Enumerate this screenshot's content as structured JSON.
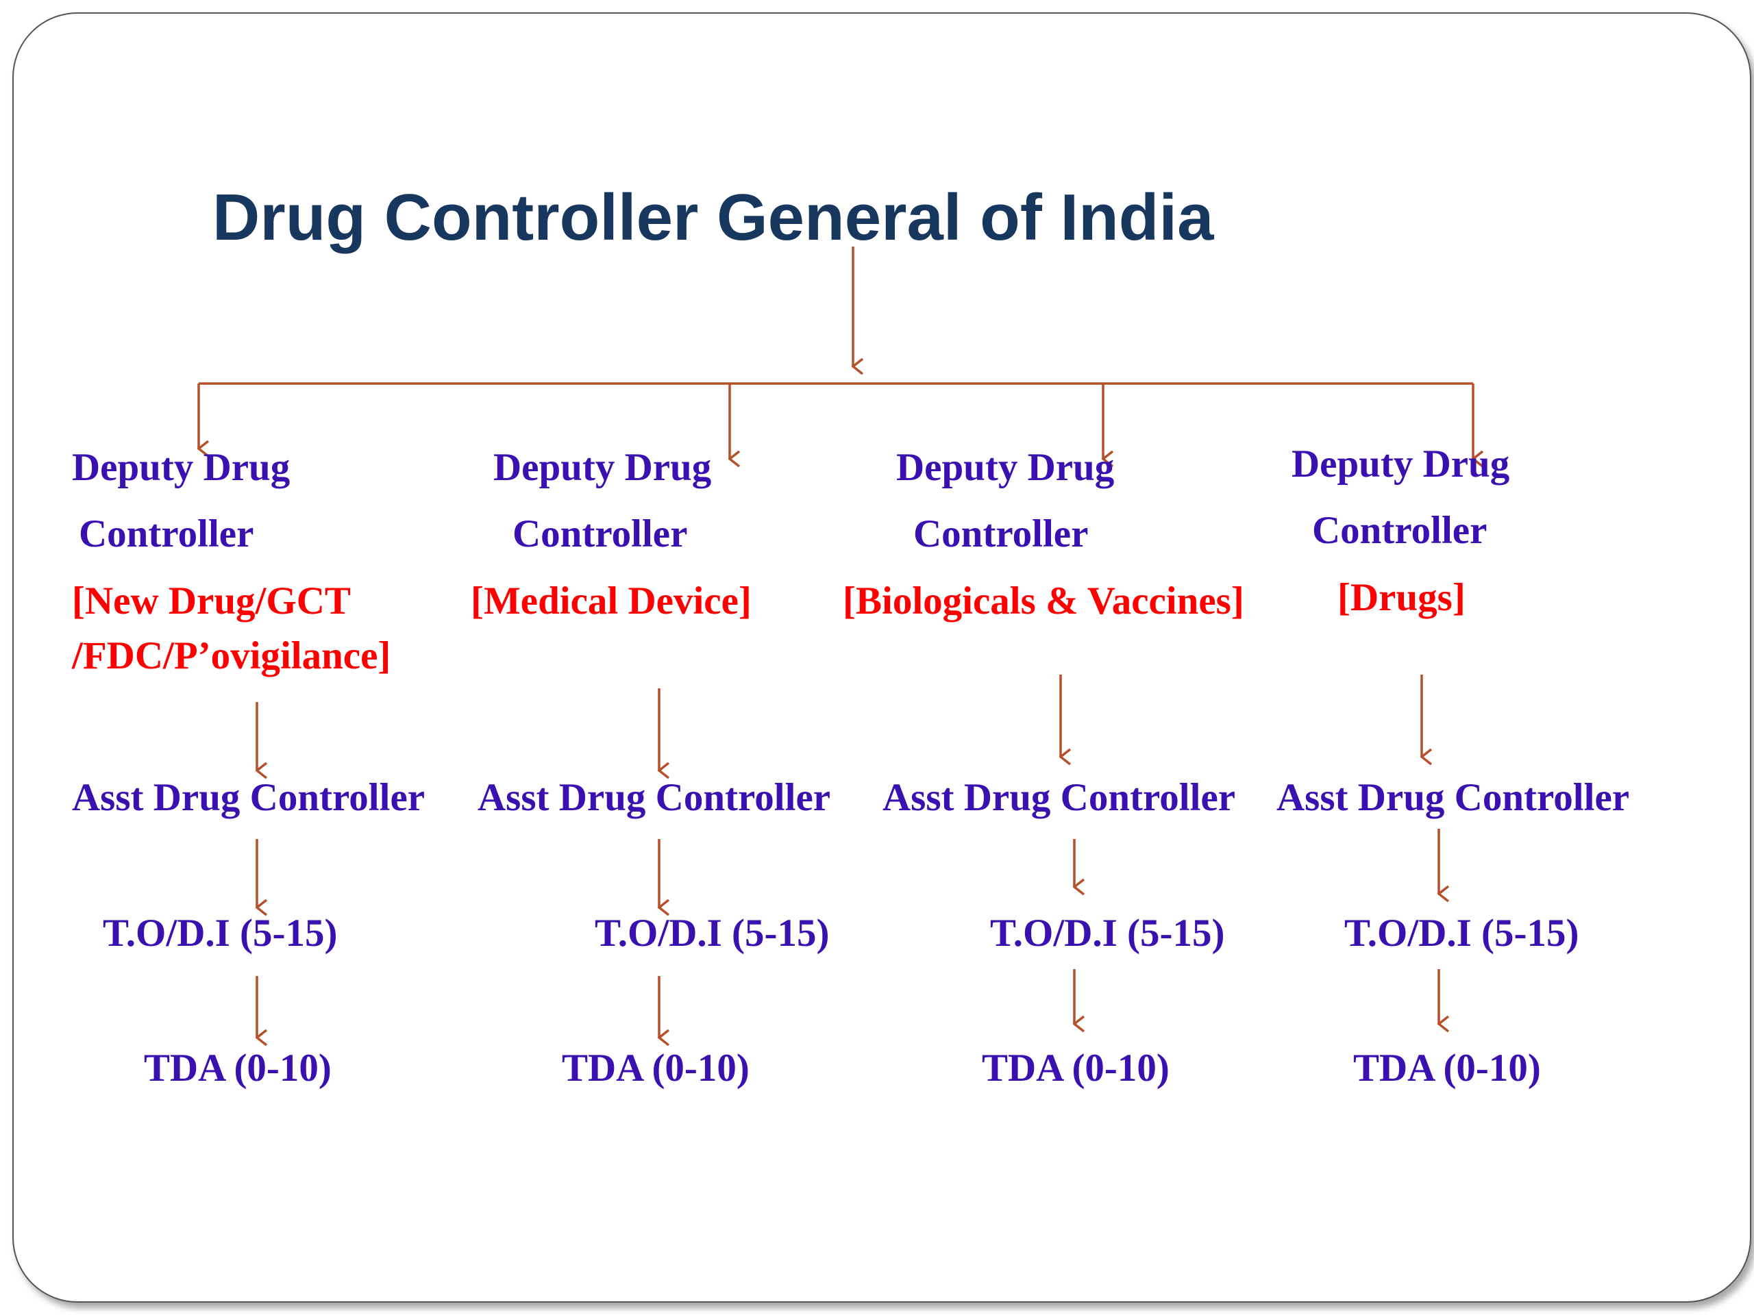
{
  "title": "Drug Controller General of India",
  "colors": {
    "title": "#17375E",
    "role_text": "#3A10B0",
    "department_text": "#FF0000",
    "connector": "#B5512A"
  },
  "branches": [
    {
      "deputy_line1": "Deputy Drug",
      "deputy_line2": "Controller",
      "department_line1": "[New Drug/GCT",
      "department_line2": "/FDC/P’ovigilance]",
      "asst": "Asst Drug Controller",
      "to_di": "T.O/D.I (5-15)",
      "tda": "TDA  (0-10)"
    },
    {
      "deputy_line1": "Deputy Drug",
      "deputy_line2": "Controller",
      "department_line1": "[Medical Device]",
      "department_line2": "",
      "asst": "Asst Drug Controller",
      "to_di": "T.O/D.I (5-15)",
      "tda": "TDA  (0-10)"
    },
    {
      "deputy_line1": "Deputy Drug",
      "deputy_line2": "Controller",
      "department_line1": "[Biologicals & Vaccines]",
      "department_line2": "",
      "asst": "Asst Drug Controller",
      "to_di": "T.O/D.I (5-15)",
      "tda": "TDA  (0-10)"
    },
    {
      "deputy_line1": "Deputy Drug",
      "deputy_line2": "Controller",
      "department_line1": "[Drugs]",
      "department_line2": "",
      "asst": "Asst Drug Controller",
      "to_di": "T.O/D.I (5-15)",
      "tda": "TDA  (0-10)"
    }
  ]
}
